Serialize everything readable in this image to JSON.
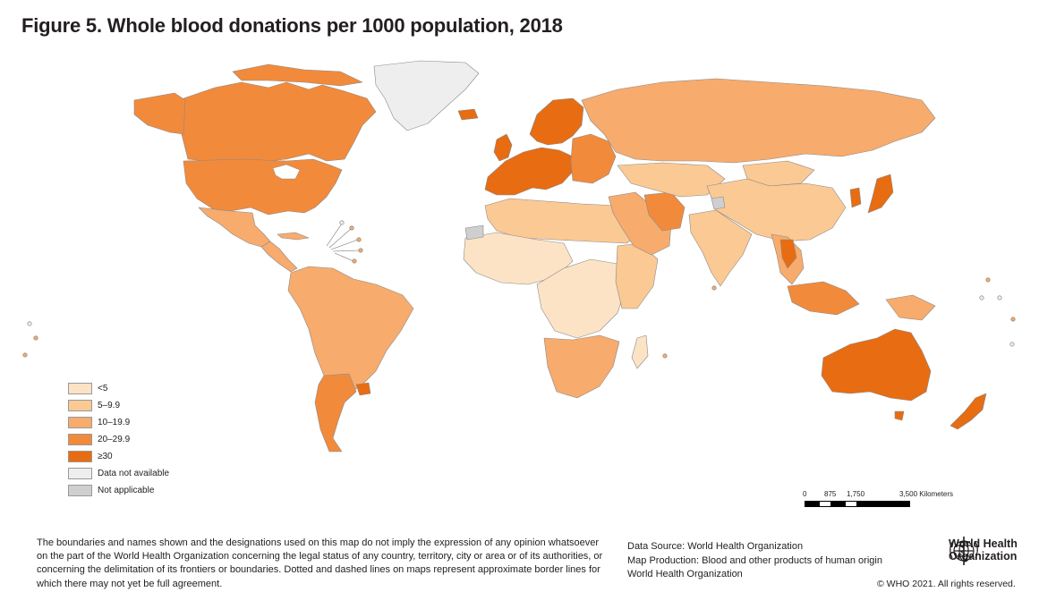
{
  "title": "Figure 5. Whole blood donations per 1000 population, 2018",
  "legend": [
    {
      "label": "<5",
      "color": "#fde3c6"
    },
    {
      "label": "5–9.9",
      "color": "#fbc994"
    },
    {
      "label": "10–19.9",
      "color": "#f7ab6c"
    },
    {
      "label": "20–29.9",
      "color": "#f28a3b"
    },
    {
      "label": "≥30",
      "color": "#e86c12"
    },
    {
      "label": "Data not available",
      "color": "#eeeeee"
    },
    {
      "label": "Not applicable",
      "color": "#cfcfcf"
    }
  ],
  "scale": {
    "ticks": [
      "0",
      "875",
      "1,750",
      "3,500 Kilometers"
    ]
  },
  "disclaimer": "The boundaries and names shown and the designations used on this map do not imply the expression of any opinion whatsoever on the part of the World Health Organization concerning the legal status of any country, territory, city or area or of its authorities, or concerning the delimitation of its frontiers or boundaries. Dotted and dashed lines on maps represent approximate border lines for which there may not yet be full agreement.",
  "source": {
    "line1": "Data Source: World Health Organization",
    "line2": "Map Production: Blood and other products of human origin",
    "line3": "World Health Organization"
  },
  "who": {
    "name_line1": "World Health",
    "name_line2": "Organization"
  },
  "copyright": "© WHO 2021. All rights reserved.",
  "regions": {
    "greenland": "#eeeeee",
    "canada": "#f28a3b",
    "usa": "#f28a3b",
    "mexico": "#f7ab6c",
    "central_america": "#f7ab6c",
    "south_america": "#f7ab6c",
    "argentina": "#f28a3b",
    "uruguay": "#e86c12",
    "iceland": "#e86c12",
    "western_europe": "#e86c12",
    "scandinavia": "#e86c12",
    "eastern_europe": "#f28a3b",
    "russia": "#f7ab6c",
    "north_africa": "#fbc994",
    "west_africa": "#fde3c6",
    "central_africa": "#fde3c6",
    "east_africa": "#fbc994",
    "southern_africa": "#f7ab6c",
    "madagascar": "#fde3c6",
    "middle_east": "#f7ab6c",
    "iran": "#f28a3b",
    "central_asia": "#fbc994",
    "mongolia": "#fbc994",
    "china": "#fbc994",
    "india": "#fbc994",
    "southeast_asia": "#f7ab6c",
    "thailand": "#e86c12",
    "japan": "#e86c12",
    "korea": "#e86c12",
    "indonesia": "#f28a3b",
    "papua": "#f7ab6c",
    "australia": "#e86c12",
    "new_zealand": "#e86c12",
    "not_applicable": "#cfcfcf"
  }
}
